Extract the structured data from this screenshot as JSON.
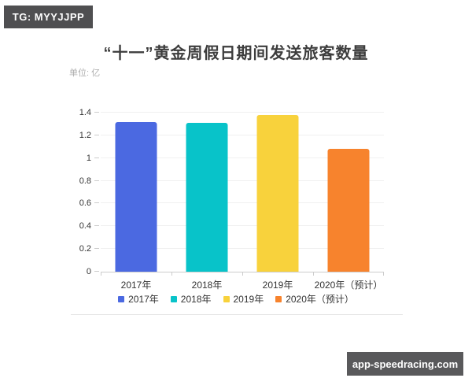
{
  "watermarks": {
    "top_left": "TG: MYYJJPP",
    "bottom_right": "app-speedracing.com"
  },
  "chart_data": {
    "type": "bar",
    "title": "“十一”黄金周假日期间发送旅客数量",
    "unit_label": "单位: 亿",
    "categories": [
      "2017年",
      "2018年",
      "2019年",
      "2020年（预计）"
    ],
    "values": [
      1.32,
      1.31,
      1.38,
      1.08
    ],
    "bar_colors": [
      "#4b69e1",
      "#08c3c9",
      "#f8d23c",
      "#f7832d"
    ],
    "xlabel": "",
    "ylabel": "",
    "ylim": [
      0,
      1.4
    ],
    "ytick_labels": [
      "0",
      "0.2",
      "0.4",
      "0.6",
      "0.8",
      "1",
      "1.2",
      "1.4"
    ],
    "grid": true,
    "legend_position": "bottom",
    "legend": [
      {
        "label": "2017年",
        "color": "#4b69e1"
      },
      {
        "label": "2018年",
        "color": "#08c3c9"
      },
      {
        "label": "2019年",
        "color": "#f8d23c"
      },
      {
        "label": "2020年（预计）",
        "color": "#f7832d"
      }
    ]
  }
}
